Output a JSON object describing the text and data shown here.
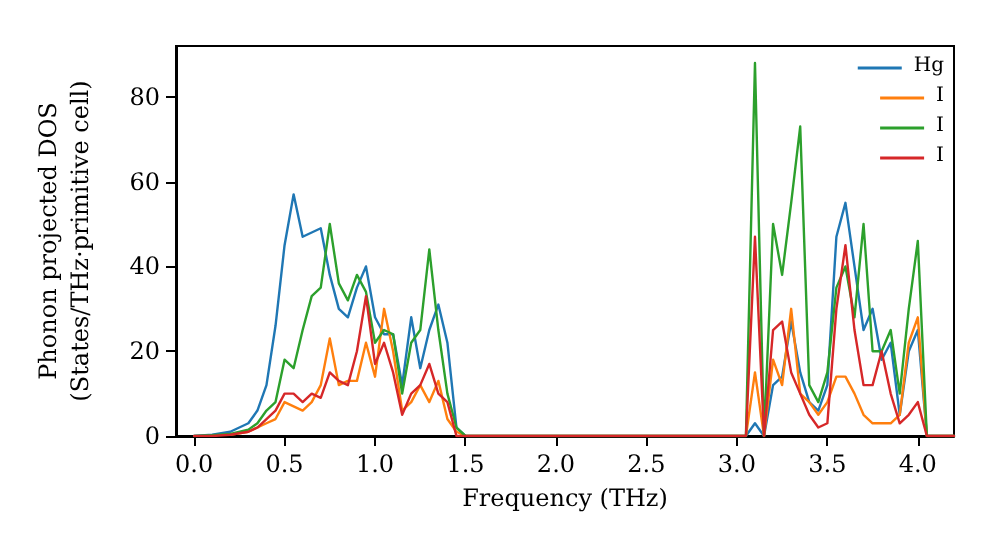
{
  "chart_data": {
    "type": "line",
    "xlabel": "Frequency (THz)",
    "ylabel": "Phonon projected DOS\n(States/THz·primitive cell)",
    "x": [
      0,
      0.1,
      0.2,
      0.3,
      0.35,
      0.4,
      0.45,
      0.5,
      0.55,
      0.6,
      0.65,
      0.7,
      0.75,
      0.8,
      0.85,
      0.9,
      0.95,
      1.0,
      1.05,
      1.1,
      1.15,
      1.2,
      1.25,
      1.3,
      1.35,
      1.4,
      1.45,
      1.5,
      3.0,
      3.05,
      3.1,
      3.15,
      3.2,
      3.25,
      3.3,
      3.35,
      3.4,
      3.45,
      3.5,
      3.55,
      3.6,
      3.65,
      3.7,
      3.75,
      3.8,
      3.85,
      3.9,
      3.95,
      4.0,
      4.05,
      4.2
    ],
    "series": [
      {
        "name": "Hg",
        "color": "#1f77b4",
        "values": [
          0,
          0.3,
          1,
          3,
          6,
          12,
          26,
          45,
          57,
          47,
          48,
          49,
          38,
          30,
          28,
          35,
          40,
          28,
          24,
          24,
          12,
          28,
          16,
          25,
          31,
          22,
          2,
          0,
          0,
          0,
          3,
          0,
          12,
          14,
          27,
          15,
          8,
          6,
          12,
          47,
          55,
          40,
          25,
          30,
          18,
          22,
          5,
          20,
          25,
          0,
          0
        ]
      },
      {
        "name": "I",
        "color": "#ff7f0e",
        "values": [
          null,
          null,
          0.3,
          1,
          2,
          3,
          4,
          8,
          7,
          6,
          8,
          12,
          23,
          12,
          13,
          13,
          22,
          14,
          30,
          20,
          6,
          8,
          12,
          8,
          13,
          4,
          1,
          0,
          0,
          0,
          15,
          0,
          18,
          12,
          30,
          10,
          8,
          5,
          8,
          14,
          14,
          10,
          5,
          3,
          3,
          3,
          5,
          22,
          28,
          0,
          0
        ]
      },
      {
        "name": "I",
        "color": "#2ca02c",
        "values": [
          0,
          0.2,
          0.5,
          1.5,
          3,
          6,
          8,
          18,
          16,
          25,
          33,
          35,
          50,
          36,
          32,
          38,
          34,
          22,
          25,
          24,
          10,
          22,
          25,
          44,
          25,
          10,
          2,
          0,
          0,
          0,
          88,
          0,
          50,
          38,
          55,
          73,
          12,
          8,
          15,
          35,
          40,
          28,
          50,
          20,
          20,
          25,
          10,
          30,
          46,
          0,
          0
        ]
      },
      {
        "name": "I",
        "color": "#d62728",
        "values": [
          0,
          0,
          0.3,
          1,
          2,
          4,
          6,
          10,
          10,
          8,
          10,
          9,
          15,
          13,
          12,
          20,
          33,
          17,
          22,
          15,
          5,
          10,
          12,
          17,
          10,
          8,
          0,
          0,
          0,
          0,
          47,
          0,
          25,
          27,
          15,
          10,
          5,
          2,
          3,
          30,
          45,
          25,
          12,
          12,
          20,
          10,
          3,
          5,
          8,
          0,
          0
        ]
      }
    ],
    "xlim": [
      -0.1,
      4.2
    ],
    "xticks": [
      {
        "value": 0,
        "label": "0.0"
      },
      {
        "value": 0.5,
        "label": "0.5"
      },
      {
        "value": 1,
        "label": "1.0"
      },
      {
        "value": 1.5,
        "label": "1.5"
      },
      {
        "value": 2,
        "label": "2.0"
      },
      {
        "value": 2.5,
        "label": "2.5"
      },
      {
        "value": 3,
        "label": "3.0"
      },
      {
        "value": 3.5,
        "label": "3.5"
      },
      {
        "value": 4,
        "label": "4.0"
      }
    ],
    "ylim": [
      0,
      92
    ],
    "yticks": [
      0,
      20,
      40,
      60,
      80
    ],
    "legend": "top right",
    "grid": false,
    "marker": "none",
    "line_style": "solid"
  }
}
